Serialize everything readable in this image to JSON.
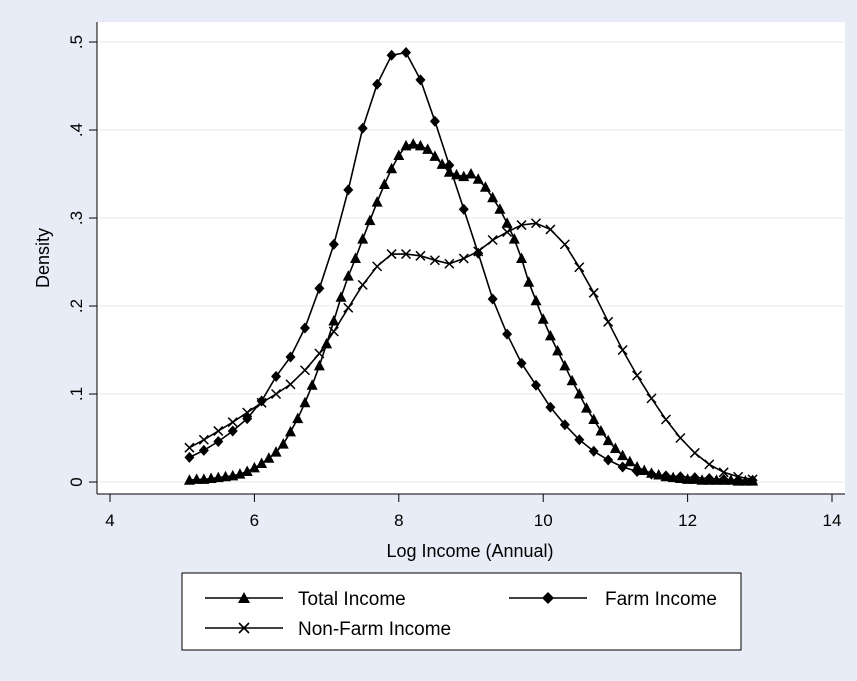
{
  "chart_data": {
    "type": "line",
    "title": "",
    "xlabel": "Log Income (Annual)",
    "ylabel": "Density",
    "xlim": [
      4,
      14
    ],
    "ylim": [
      0,
      0.5
    ],
    "x_ticks": [
      4,
      6,
      8,
      10,
      12,
      14
    ],
    "x_tick_labels": [
      "4",
      "6",
      "8",
      "10",
      "12",
      "14"
    ],
    "y_ticks": [
      0,
      0.1,
      0.2,
      0.3,
      0.4,
      0.5
    ],
    "y_tick_labels": [
      "0",
      ".1",
      ".2",
      ".3",
      ".4",
      ".5"
    ],
    "grid": "horizontal",
    "legend_position": "bottom",
    "colors": {
      "background": "#e8ecf6",
      "plot_area": "#ffffff",
      "series": "#000000",
      "grid": "#e4e9f2"
    },
    "series": [
      {
        "name": "Total Income",
        "marker": "triangle",
        "x": [
          5.1,
          5.2,
          5.3,
          5.4,
          5.5,
          5.6,
          5.7,
          5.8,
          5.9,
          6.0,
          6.1,
          6.2,
          6.3,
          6.4,
          6.5,
          6.6,
          6.7,
          6.8,
          6.9,
          7.0,
          7.1,
          7.2,
          7.3,
          7.4,
          7.5,
          7.6,
          7.7,
          7.8,
          7.9,
          8.0,
          8.1,
          8.2,
          8.3,
          8.4,
          8.5,
          8.6,
          8.7,
          8.8,
          8.9,
          9.0,
          9.1,
          9.2,
          9.3,
          9.4,
          9.5,
          9.6,
          9.7,
          9.8,
          9.9,
          10.0,
          10.1,
          10.2,
          10.3,
          10.4,
          10.5,
          10.6,
          10.7,
          10.8,
          10.9,
          11.0,
          11.1,
          11.2,
          11.3,
          11.4,
          11.5,
          11.6,
          11.7,
          11.8,
          11.9,
          12.0,
          12.1,
          12.2,
          12.3,
          12.4,
          12.5,
          12.6,
          12.7,
          12.8,
          12.9
        ],
        "y": [
          0.002,
          0.003,
          0.003,
          0.004,
          0.005,
          0.006,
          0.007,
          0.009,
          0.012,
          0.016,
          0.021,
          0.027,
          0.034,
          0.043,
          0.057,
          0.072,
          0.09,
          0.11,
          0.132,
          0.157,
          0.183,
          0.21,
          0.234,
          0.254,
          0.276,
          0.297,
          0.318,
          0.338,
          0.356,
          0.371,
          0.382,
          0.384,
          0.382,
          0.378,
          0.37,
          0.361,
          0.352,
          0.349,
          0.347,
          0.35,
          0.344,
          0.335,
          0.323,
          0.31,
          0.294,
          0.276,
          0.254,
          0.227,
          0.206,
          0.185,
          0.166,
          0.149,
          0.132,
          0.115,
          0.1,
          0.084,
          0.071,
          0.058,
          0.047,
          0.038,
          0.03,
          0.023,
          0.017,
          0.013,
          0.01,
          0.008,
          0.006,
          0.005,
          0.004,
          0.003,
          0.003,
          0.002,
          0.002,
          0.002,
          0.002,
          0.002,
          0.001,
          0.001,
          0.001
        ]
      },
      {
        "name": "Farm Income",
        "marker": "diamond",
        "x": [
          5.1,
          5.3,
          5.5,
          5.7,
          5.9,
          6.1,
          6.3,
          6.5,
          6.7,
          6.9,
          7.1,
          7.3,
          7.5,
          7.7,
          7.9,
          8.1,
          8.3,
          8.5,
          8.7,
          8.9,
          9.1,
          9.3,
          9.5,
          9.7,
          9.9,
          10.1,
          10.3,
          10.5,
          10.7,
          10.9,
          11.1,
          11.3,
          11.5,
          11.7,
          11.9,
          12.1,
          12.3,
          12.5,
          12.7,
          12.9
        ],
        "y": [
          0.028,
          0.036,
          0.046,
          0.058,
          0.072,
          0.092,
          0.12,
          0.142,
          0.175,
          0.22,
          0.27,
          0.332,
          0.402,
          0.452,
          0.485,
          0.488,
          0.457,
          0.41,
          0.36,
          0.31,
          0.26,
          0.208,
          0.168,
          0.135,
          0.11,
          0.085,
          0.065,
          0.048,
          0.035,
          0.025,
          0.017,
          0.012,
          0.009,
          0.007,
          0.006,
          0.005,
          0.004,
          0.003,
          0.002,
          0.002
        ]
      },
      {
        "name": "Non-Farm Income",
        "marker": "x",
        "x": [
          5.1,
          5.3,
          5.5,
          5.7,
          5.9,
          6.1,
          6.3,
          6.5,
          6.7,
          6.9,
          7.1,
          7.3,
          7.5,
          7.7,
          7.9,
          8.1,
          8.3,
          8.5,
          8.7,
          8.9,
          9.1,
          9.3,
          9.5,
          9.7,
          9.9,
          10.1,
          10.3,
          10.5,
          10.7,
          10.9,
          11.1,
          11.3,
          11.5,
          11.7,
          11.9,
          12.1,
          12.3,
          12.5,
          12.7,
          12.9
        ],
        "y": [
          0.039,
          0.048,
          0.058,
          0.068,
          0.079,
          0.09,
          0.1,
          0.111,
          0.127,
          0.146,
          0.171,
          0.198,
          0.224,
          0.245,
          0.259,
          0.259,
          0.257,
          0.252,
          0.248,
          0.254,
          0.262,
          0.275,
          0.284,
          0.292,
          0.294,
          0.287,
          0.27,
          0.244,
          0.215,
          0.182,
          0.15,
          0.121,
          0.095,
          0.071,
          0.05,
          0.033,
          0.02,
          0.011,
          0.006,
          0.003
        ]
      }
    ]
  }
}
